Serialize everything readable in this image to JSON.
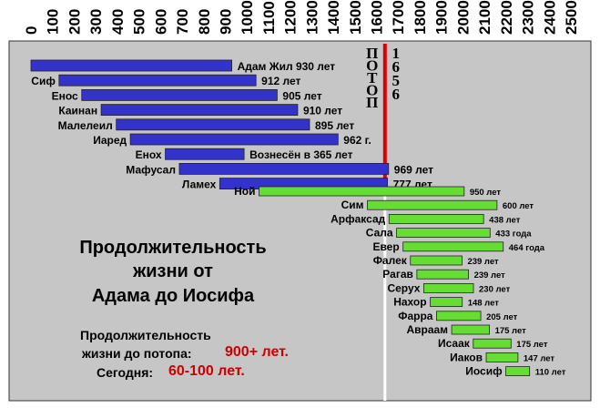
{
  "chart_data": {
    "type": "bar",
    "x_ticks": [
      0,
      100,
      200,
      300,
      400,
      500,
      600,
      700,
      800,
      900,
      1000,
      1100,
      1200,
      1300,
      1400,
      1500,
      1600,
      1700,
      1800,
      1900,
      2000,
      2100,
      2200,
      2300,
      2400,
      2500
    ],
    "xlim": [
      0,
      2500
    ],
    "grid": false,
    "flood": {
      "year": 1656,
      "label": "ПОТОП",
      "year_label": "1656",
      "color": "#dd0000"
    },
    "colors": {
      "before_flood": "#3333cc",
      "after_flood": "#66dd33",
      "plot_bg": "#c6c6c6"
    },
    "bars": [
      {
        "name": "",
        "start": 0,
        "end": 930,
        "label": "Адам Жил 930 лет",
        "group": "before"
      },
      {
        "name": "Сиф",
        "start": 130,
        "end": 1042,
        "label": "912 лет",
        "group": "before"
      },
      {
        "name": "Енос",
        "start": 235,
        "end": 1140,
        "label": "905 лет",
        "group": "before"
      },
      {
        "name": "Каинан",
        "start": 325,
        "end": 1235,
        "label": "910 лет",
        "group": "before"
      },
      {
        "name": "Малелеил",
        "start": 395,
        "end": 1290,
        "label": "895 лет",
        "group": "before"
      },
      {
        "name": "Иаред",
        "start": 460,
        "end": 1422,
        "label": "962 г.",
        "group": "before"
      },
      {
        "name": "Енох",
        "start": 622,
        "end": 987,
        "label": "Вознесён в 365 лет",
        "group": "before"
      },
      {
        "name": "Мафусал",
        "start": 687,
        "end": 1656,
        "label": "969 лет",
        "group": "before"
      },
      {
        "name": "Ламех",
        "start": 874,
        "end": 1651,
        "label": "777 лет",
        "group": "before"
      },
      {
        "name": "Ной",
        "start": 1056,
        "end": 2006,
        "label": "950 лет",
        "group": "after"
      },
      {
        "name": "Сим",
        "start": 1558,
        "end": 2158,
        "label": "600 лет",
        "group": "after"
      },
      {
        "name": "Арфаксад",
        "start": 1658,
        "end": 2096,
        "label": "438 лет",
        "group": "after"
      },
      {
        "name": "Сала",
        "start": 1693,
        "end": 2126,
        "label": "433 года",
        "group": "after"
      },
      {
        "name": "Евер",
        "start": 1723,
        "end": 2187,
        "label": "464 года",
        "group": "after"
      },
      {
        "name": "Фалек",
        "start": 1757,
        "end": 1996,
        "label": "239 лет",
        "group": "after"
      },
      {
        "name": "Рагав",
        "start": 1787,
        "end": 2026,
        "label": "239 лет",
        "group": "after"
      },
      {
        "name": "Серух",
        "start": 1819,
        "end": 2049,
        "label": "230 лет",
        "group": "after"
      },
      {
        "name": "Нахор",
        "start": 1849,
        "end": 1997,
        "label": "148 лет",
        "group": "after"
      },
      {
        "name": "Фарра",
        "start": 1878,
        "end": 2083,
        "label": "205 лет",
        "group": "after"
      },
      {
        "name": "Авраам",
        "start": 1948,
        "end": 2123,
        "label": "175 лет",
        "group": "after"
      },
      {
        "name": "Исаак",
        "start": 2048,
        "end": 2223,
        "label": "175 лет",
        "group": "after"
      },
      {
        "name": "Иаков",
        "start": 2108,
        "end": 2255,
        "label": "147 лет",
        "group": "after"
      },
      {
        "name": "Иосиф",
        "start": 2199,
        "end": 2309,
        "label": "110 лет",
        "group": "after"
      }
    ]
  },
  "text": {
    "title_line1": "Продолжительность",
    "title_line2": "жизни от",
    "title_line3": "Адама до Иосифа",
    "before_line1": "Продолжительность",
    "before_line2": "жизни до потопа:",
    "before_value": "900+ лет.",
    "today_label": "Сегодня:",
    "today_value": "60-100 лет."
  }
}
